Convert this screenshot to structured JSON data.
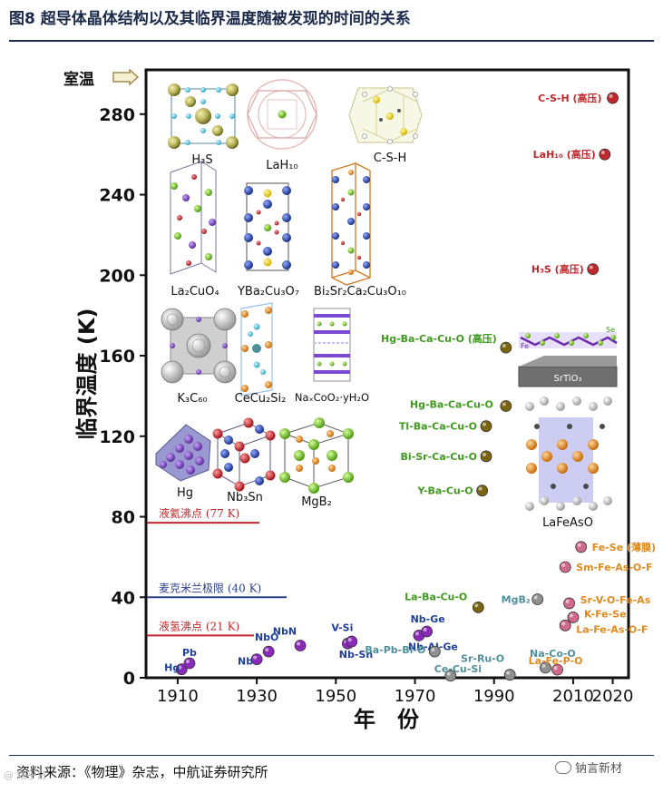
{
  "header": {
    "title": "图8 超导体晶体结构以及其临界温度随被发现的时间的关系"
  },
  "footer": {
    "source": "资料来源：《物理》杂志，中航证券研究所",
    "watermark": "钠言新材",
    "corner_mark": "@ 知乎日"
  },
  "colors": {
    "frame": "#111111",
    "title": "#1b2a4a",
    "red": "#c0282d",
    "green": "#3f9a1e",
    "blue": "#1f3f9a",
    "teal": "#4f8f9a",
    "orange": "#e08a1e",
    "purple": "#8a2ab8",
    "gold": "#7a6410",
    "pink": "#d06a8a"
  },
  "chart_data": {
    "type": "scatter",
    "title": "",
    "xlabel": "年　份",
    "ylabel": "临界温度 (K)",
    "xlim": [
      1902,
      2024
    ],
    "ylim": [
      0,
      302
    ],
    "xticks": [
      "1910",
      "1930",
      "1950",
      "1970",
      "1990",
      "2010",
      "2020"
    ],
    "yticks": [
      "0",
      "40",
      "80",
      "120",
      "160",
      "200",
      "240",
      "280"
    ],
    "room_temp_label": "室温",
    "room_temp_value": 293,
    "reference_lines": [
      {
        "label": "液氦沸点 (77 K)",
        "value": 77,
        "color": "#c0282d"
      },
      {
        "label": "麦克米兰极限 (40 K)",
        "value": 40,
        "color": "#2a3f8a"
      },
      {
        "label": "液氢沸点 (21 K)",
        "value": 21,
        "color": "#c0282d"
      }
    ],
    "points": [
      {
        "label": "Hg",
        "year": 1911,
        "tc": 4.2,
        "color": "#8a2ab8",
        "label_color": "#1f3f9a"
      },
      {
        "label": "Pb",
        "year": 1913,
        "tc": 7.2,
        "color": "#8a2ab8",
        "label_color": "#1f3f9a"
      },
      {
        "label": "Nb",
        "year": 1930,
        "tc": 9.2,
        "color": "#8a2ab8",
        "label_color": "#1f3f9a"
      },
      {
        "label": "NbO",
        "year": 1933,
        "tc": 13,
        "color": "#8a2ab8",
        "label_color": "#1f3f9a"
      },
      {
        "label": "NbN",
        "year": 1941,
        "tc": 16,
        "color": "#8a2ab8",
        "label_color": "#1f3f9a"
      },
      {
        "label": "V-Si",
        "year": 1953,
        "tc": 17,
        "color": "#8a2ab8",
        "label_color": "#1f3f9a"
      },
      {
        "label": "Nb-Sn",
        "year": 1954,
        "tc": 18,
        "color": "#8a2ab8",
        "label_color": "#1f3f9a"
      },
      {
        "label": "Nb-Al-Ge",
        "year": 1971,
        "tc": 21,
        "color": "#8a2ab8",
        "label_color": "#1f3f9a"
      },
      {
        "label": "Nb-Ge",
        "year": 1973,
        "tc": 23,
        "color": "#8a2ab8",
        "label_color": "#1f3f9a"
      },
      {
        "label": "Ba-Pb-Bi-O",
        "year": 1975,
        "tc": 13,
        "color": "#8f8f8f",
        "label_color": "#4f8f9a"
      },
      {
        "label": "Ce-Cu-Si",
        "year": 1979,
        "tc": 1,
        "color": "#8f8f8f",
        "label_color": "#4f8f9a"
      },
      {
        "label": "La-Ba-Cu-O",
        "year": 1986,
        "tc": 35,
        "color": "#7a6410",
        "label_color": "#3f9a1e"
      },
      {
        "label": "Sr-Ru-O",
        "year": 1994,
        "tc": 1.5,
        "color": "#8f8f8f",
        "label_color": "#4f8f9a"
      },
      {
        "label": "Y-Ba-Cu-O",
        "year": 1987,
        "tc": 93,
        "color": "#7a6410",
        "label_color": "#3f9a1e"
      },
      {
        "label": "Bi-Sr-Ca-Cu-O",
        "year": 1988,
        "tc": 110,
        "color": "#7a6410",
        "label_color": "#3f9a1e"
      },
      {
        "label": "Tl-Ba-Ca-Cu-O",
        "year": 1988,
        "tc": 125,
        "color": "#7a6410",
        "label_color": "#3f9a1e"
      },
      {
        "label": "Hg-Ba-Ca-Cu-O",
        "year": 1993,
        "tc": 135,
        "color": "#7a6410",
        "label_color": "#3f9a1e"
      },
      {
        "label": "Hg-Ba-Ca-Cu-O (高压)",
        "year": 1993,
        "tc": 164,
        "color": "#7a6410",
        "label_color": "#3f9a1e"
      },
      {
        "label": "MgB₂",
        "year": 2001,
        "tc": 39,
        "color": "#8f8f8f",
        "label_color": "#4f8f9a"
      },
      {
        "label": "Na-Co-O",
        "year": 2003,
        "tc": 5,
        "color": "#8f8f8f",
        "label_color": "#4f8f9a"
      },
      {
        "label": "La-Fe-P-O",
        "year": 2006,
        "tc": 4,
        "color": "#d06a8a",
        "label_color": "#e08a1e"
      },
      {
        "label": "La-Fe-As-O-F",
        "year": 2008,
        "tc": 26,
        "color": "#d06a8a",
        "label_color": "#e08a1e"
      },
      {
        "label": "K-Fe-Se",
        "year": 2010,
        "tc": 30,
        "color": "#d06a8a",
        "label_color": "#e08a1e"
      },
      {
        "label": "Sr-V-O-Fe-As",
        "year": 2009,
        "tc": 37,
        "color": "#d06a8a",
        "label_color": "#e08a1e"
      },
      {
        "label": "Sm-Fe-As-O-F",
        "year": 2008,
        "tc": 55,
        "color": "#d06a8a",
        "label_color": "#e08a1e"
      },
      {
        "label": "Fe-Se (薄膜)",
        "year": 2012,
        "tc": 65,
        "color": "#d06a8a",
        "label_color": "#e08a1e"
      },
      {
        "label": "H₃S (高压)",
        "year": 2015,
        "tc": 203,
        "color": "#c0282d",
        "label_color": "#c0282d"
      },
      {
        "label": "LaH₁₀ (高压)",
        "year": 2018,
        "tc": 260,
        "color": "#c0282d",
        "label_color": "#c0282d"
      },
      {
        "label": "C-S-H (高压)",
        "year": 2020,
        "tc": 288,
        "color": "#c0282d",
        "label_color": "#c0282d"
      }
    ],
    "structure_labels": [
      "H₃S",
      "LaH₁₀",
      "C-S-H",
      "La₂CuO₄",
      "YBa₂Cu₃O₇",
      "Bi₂Sr₂Ca₂Cu₃O₁₀",
      "K₃C₆₀",
      "CeCu₂Si₂",
      "NaₓCoO₂·yH₂O",
      "Hg",
      "Nb₃Sn",
      "MgB₂",
      "SrTiO₃",
      "LaFeAsO",
      "Fe",
      "Se"
    ]
  }
}
